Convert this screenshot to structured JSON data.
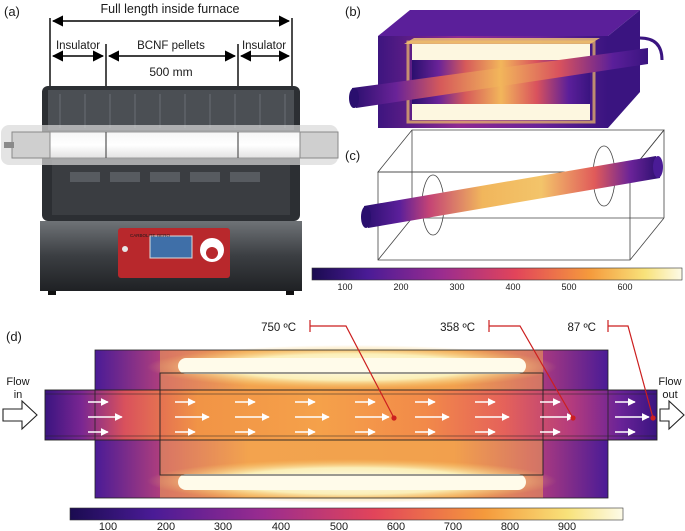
{
  "panels": {
    "a": "(a)",
    "b": "(b)",
    "c": "(c)",
    "d": "(d)"
  },
  "panel_a": {
    "full_length": "Full length inside furnace",
    "insulator_left": "Insulator",
    "pellets": "BCNF pellets",
    "insulator_right": "Insulator",
    "pellet_length": "500 mm",
    "panel_brand": "CARBOLITE GERO"
  },
  "colorbar_small": {
    "ticks": [
      "100",
      "200",
      "300",
      "400",
      "500",
      "600"
    ]
  },
  "panel_d": {
    "probes": [
      "750 ºC",
      "358 ºC",
      "87 ºC"
    ],
    "flow_in": [
      "Flow",
      "in"
    ],
    "flow_out": [
      "Flow",
      "out"
    ]
  },
  "colorbar_large": {
    "ticks": [
      "100",
      "200",
      "300",
      "400",
      "500",
      "600",
      "700",
      "800",
      "900"
    ]
  },
  "colors": {
    "cold": "#2a0f6e",
    "warm": "#e2445a",
    "hot": "#f8e27a",
    "hottest": "#fdfbe8",
    "probe": "#cc1f1f"
  }
}
